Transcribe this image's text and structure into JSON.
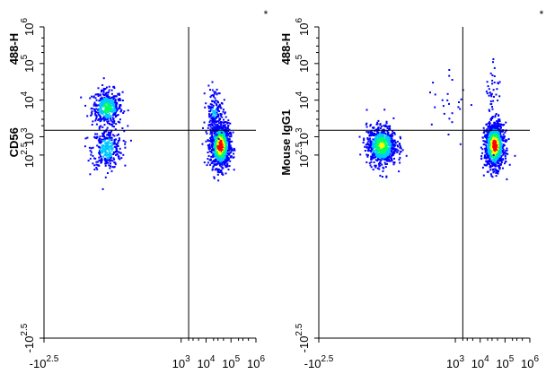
{
  "chart_data": [
    {
      "type": "scatter",
      "subtype": "flow-cytometry-density-plot",
      "corner_mark": "*",
      "ylabel_parts": [
        "CD56",
        "488-H"
      ],
      "xscale": "biexponential",
      "yscale": "biexponential",
      "xlim": [
        -316,
        1000000
      ],
      "ylim": [
        -316,
        1000000
      ],
      "x_ticks": [
        {
          "value": -316,
          "base": "-10",
          "exp": "2.5"
        },
        {
          "value": 1000,
          "base": "10",
          "exp": "3"
        },
        {
          "value": 10000,
          "base": "10",
          "exp": "4"
        },
        {
          "value": 100000,
          "base": "10",
          "exp": "5"
        },
        {
          "value": 1000000,
          "base": "10",
          "exp": "6"
        }
      ],
      "y_ticks": [
        {
          "value": -316,
          "base": "-10",
          "exp": "2.5"
        },
        {
          "value": 316,
          "base": "10",
          "exp": "2.5"
        },
        {
          "value": 1000,
          "base": "10",
          "exp": "3"
        },
        {
          "value": 10000,
          "base": "10",
          "exp": "4"
        },
        {
          "value": 100000,
          "base": "10",
          "exp": "5"
        },
        {
          "value": 1000000,
          "base": "10",
          "exp": "6"
        }
      ],
      "gate": {
        "x": 2000,
        "y": 1500
      },
      "populations": [
        {
          "x": 0,
          "y": 6500,
          "n": 420,
          "spread_x": 0.55,
          "spread_y": 0.45,
          "peak": 0.55
        },
        {
          "x": 0,
          "y": 500,
          "n": 320,
          "spread_x": 0.55,
          "spread_y": 0.5,
          "peak": 0.45
        },
        {
          "x": 35000,
          "y": 600,
          "n": 1100,
          "spread_x": 0.35,
          "spread_y": 0.55,
          "peak": 1.0
        },
        {
          "x": 20000,
          "y": 5000,
          "n": 160,
          "spread_x": 0.3,
          "spread_y": 0.6,
          "peak": 0.3
        }
      ]
    },
    {
      "type": "scatter",
      "subtype": "flow-cytometry-density-plot",
      "corner_mark": "*",
      "ylabel_parts": [
        "Mouse IgG1",
        "488-H"
      ],
      "xscale": "biexponential",
      "yscale": "biexponential",
      "xlim": [
        -316,
        1000000
      ],
      "ylim": [
        -316,
        1000000
      ],
      "x_ticks": [
        {
          "value": -316,
          "base": "-10",
          "exp": "2.5"
        },
        {
          "value": 1000,
          "base": "10",
          "exp": "3"
        },
        {
          "value": 10000,
          "base": "10",
          "exp": "4"
        },
        {
          "value": 100000,
          "base": "10",
          "exp": "5"
        },
        {
          "value": 1000000,
          "base": "10",
          "exp": "6"
        }
      ],
      "y_ticks": [
        {
          "value": -316,
          "base": "-10",
          "exp": "2.5"
        },
        {
          "value": 316,
          "base": "10",
          "exp": "2.5"
        },
        {
          "value": 1000,
          "base": "10",
          "exp": "3"
        },
        {
          "value": 10000,
          "base": "10",
          "exp": "4"
        },
        {
          "value": 100000,
          "base": "10",
          "exp": "5"
        },
        {
          "value": 1000000,
          "base": "10",
          "exp": "6"
        }
      ],
      "gate": {
        "x": 2000,
        "y": 1500
      },
      "populations": [
        {
          "x": 0,
          "y": 600,
          "n": 750,
          "spread_x": 0.55,
          "spread_y": 0.5,
          "peak": 0.7
        },
        {
          "x": 35000,
          "y": 600,
          "n": 1100,
          "spread_x": 0.35,
          "spread_y": 0.55,
          "peak": 1.0
        },
        {
          "x": 30000,
          "y": 20000,
          "n": 40,
          "spread_x": 0.25,
          "spread_y": 1.1,
          "peak": 0.1
        },
        {
          "x": 500,
          "y": 8000,
          "n": 25,
          "spread_x": 0.8,
          "spread_y": 0.9,
          "peak": 0.1
        }
      ]
    }
  ],
  "colors": {
    "density_low": "#0000ff",
    "density_mid_low": "#00c8ff",
    "density_mid": "#00ff60",
    "density_mid_high": "#ffff00",
    "density_high": "#ff0000",
    "axis": "#000000",
    "gate": "#000000"
  }
}
